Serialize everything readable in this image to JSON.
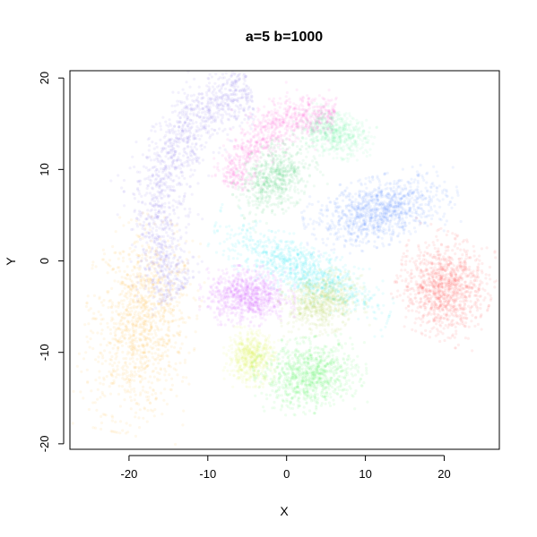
{
  "chart_data": {
    "type": "scatter",
    "title": "a=5 b=1000",
    "xlabel": "X",
    "ylabel": "Y",
    "xlim": [
      -27.5,
      27.0
    ],
    "ylim": [
      -20.6,
      20.8
    ],
    "xticks": [
      -20,
      -10,
      0,
      10,
      20
    ],
    "yticks": [
      -20,
      -10,
      0,
      10,
      20
    ],
    "grid": false,
    "legend": "none",
    "point_alpha": 0.08,
    "clusters": [
      {
        "color": "#ffa500",
        "shape": "ellipse",
        "center": [
          -18.5,
          -7.0
        ],
        "radii": [
          6.5,
          11.0
        ],
        "rotation": -10,
        "density": 1200
      },
      {
        "color": "#6a4ce8",
        "shape": "arc",
        "center": [
          -2.0,
          4.5
        ],
        "radii": [
          14.5,
          14.5
        ],
        "arc_start": 100,
        "arc_end": 215,
        "thickness": 5.0,
        "density": 1400
      },
      {
        "color": "#ff33cc",
        "shape": "arc",
        "center": [
          4.0,
          4.0
        ],
        "radii": [
          12.0,
          12.0
        ],
        "arc_start": 80,
        "arc_end": 160,
        "thickness": 3.5,
        "density": 900
      },
      {
        "color": "#33cc66",
        "shape": "ellipse",
        "center": [
          -1.5,
          9.0
        ],
        "radii": [
          5.0,
          3.5
        ],
        "rotation": 30,
        "density": 700
      },
      {
        "color": "#55ee99",
        "shape": "ellipse",
        "center": [
          6.0,
          14.0
        ],
        "radii": [
          4.8,
          2.5
        ],
        "rotation": -10,
        "density": 600
      },
      {
        "color": "#3377ff",
        "shape": "ellipse",
        "center": [
          12.0,
          5.5
        ],
        "radii": [
          9.0,
          3.5
        ],
        "rotation": 12,
        "density": 1100
      },
      {
        "color": "#ff2a2a",
        "shape": "ellipse",
        "center": [
          20.0,
          -2.8
        ],
        "radii": [
          5.5,
          5.3
        ],
        "rotation": -20,
        "density": 1100
      },
      {
        "color": "#00e0f0",
        "shape": "ellipse",
        "center": [
          2.0,
          -1.0
        ],
        "radii": [
          11.0,
          3.0
        ],
        "rotation": -22,
        "density": 1000
      },
      {
        "color": "#cc44ff",
        "shape": "ellipse",
        "center": [
          -5.0,
          -3.8
        ],
        "radii": [
          5.5,
          3.0
        ],
        "rotation": 0,
        "density": 900
      },
      {
        "color": "#aacc33",
        "shape": "ellipse",
        "center": [
          4.5,
          -4.5
        ],
        "radii": [
          5.0,
          3.2
        ],
        "rotation": 10,
        "density": 700
      },
      {
        "color": "#ddee33",
        "shape": "ellipse",
        "center": [
          -4.5,
          -10.5
        ],
        "radii": [
          3.2,
          3.0
        ],
        "rotation": 0,
        "density": 600
      },
      {
        "color": "#33ee44",
        "shape": "ellipse",
        "center": [
          3.0,
          -12.5
        ],
        "radii": [
          6.5,
          3.8
        ],
        "rotation": 5,
        "density": 1000
      }
    ]
  }
}
